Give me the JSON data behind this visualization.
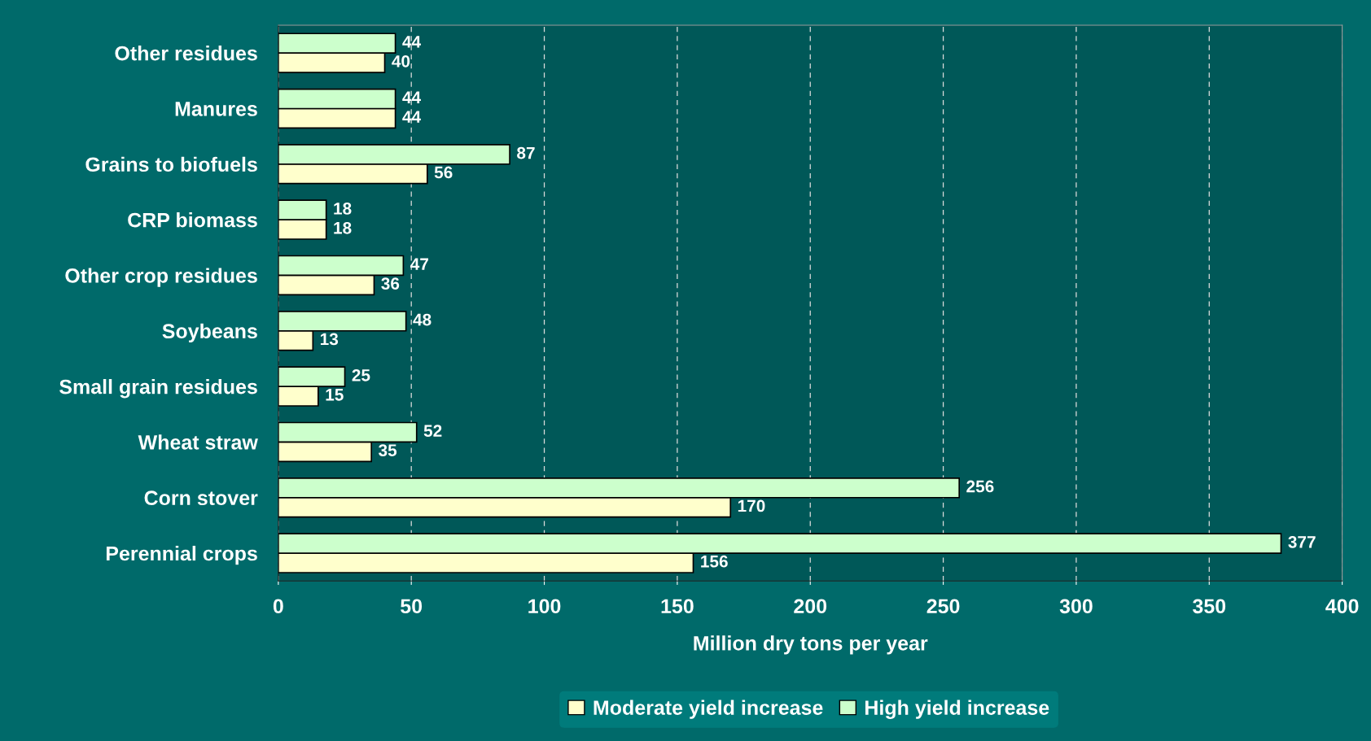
{
  "chart_data": {
    "type": "bar",
    "orientation": "horizontal",
    "xlabel": "Million dry tons per year",
    "categories": [
      "Other residues",
      "Manures",
      "Grains to biofuels",
      "CRP biomass",
      "Other crop residues",
      "Soybeans",
      "Small grain residues",
      "Wheat straw",
      "Corn stover",
      "Perennial crops"
    ],
    "series": [
      {
        "name": "Moderate yield increase",
        "color": "#ffffcc",
        "values": [
          40,
          44,
          56,
          18,
          36,
          13,
          15,
          35,
          170,
          156
        ]
      },
      {
        "name": "High yield increase",
        "color": "#ccffcc",
        "values": [
          44,
          44,
          87,
          18,
          47,
          48,
          25,
          52,
          256,
          377
        ]
      }
    ],
    "xlim": [
      0,
      400
    ],
    "xticks": [
      0,
      50,
      100,
      150,
      200,
      250,
      300,
      350,
      400
    ],
    "grid": "x",
    "legend": "bottom",
    "data_labels": true
  }
}
